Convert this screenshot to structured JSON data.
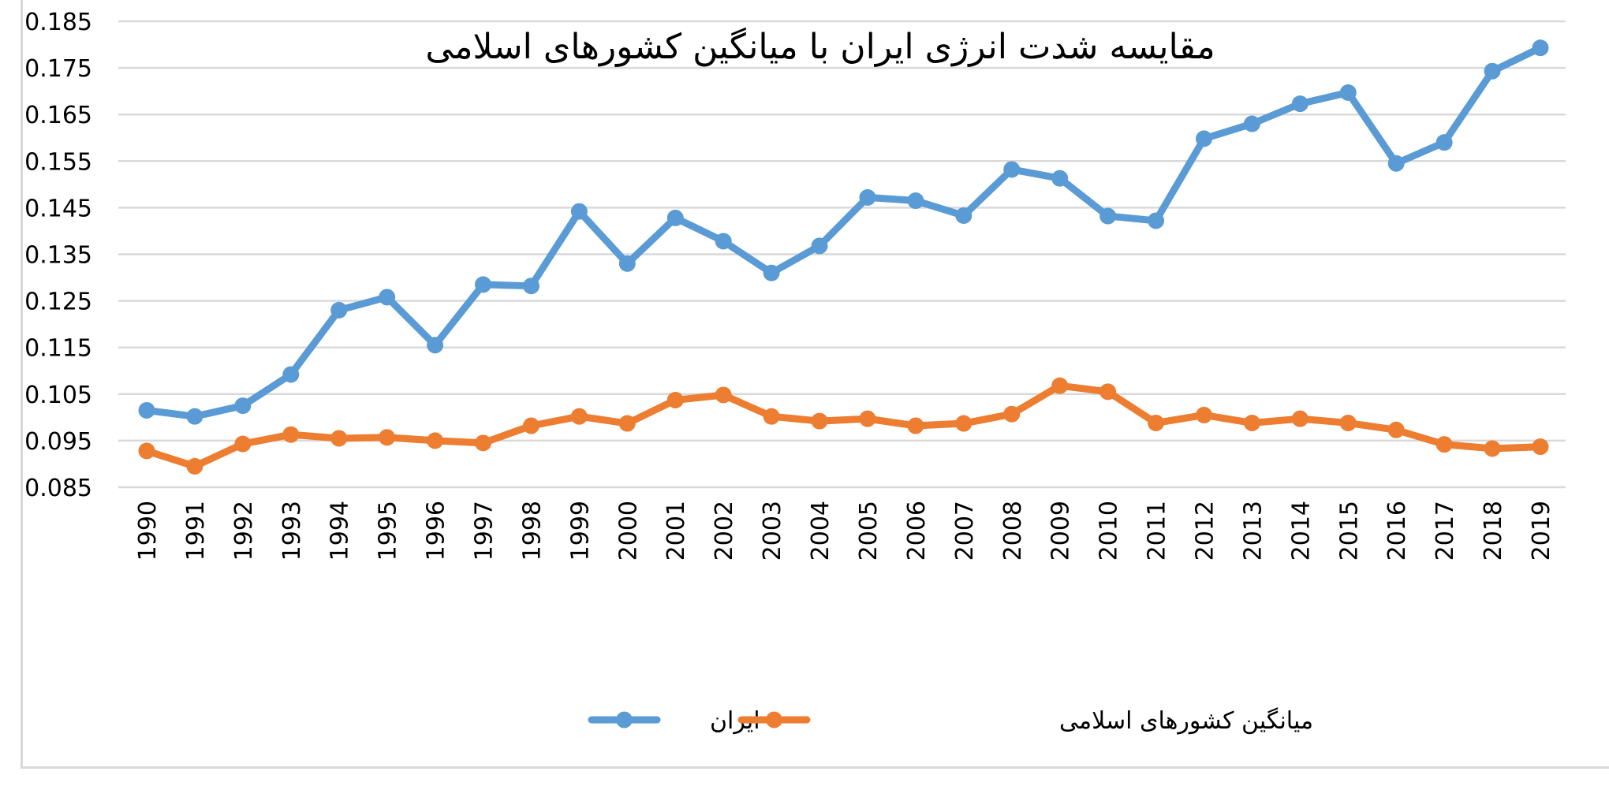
{
  "chart_data": {
    "type": "line",
    "title": "مقایسه شدت انرژی ایران با میانگین کشورهای اسلامی",
    "xlabel": "",
    "ylabel": "",
    "categories": [
      "1990",
      "1991",
      "1992",
      "1993",
      "1994",
      "1995",
      "1996",
      "1997",
      "1998",
      "1999",
      "2000",
      "2001",
      "2002",
      "2003",
      "2004",
      "2005",
      "2006",
      "2007",
      "2008",
      "2009",
      "2010",
      "2011",
      "2012",
      "2013",
      "2014",
      "2015",
      "2016",
      "2017",
      "2018",
      "2019"
    ],
    "ylim": [
      0.085,
      0.185
    ],
    "yticks": [
      "0.185",
      "0.175",
      "0.165",
      "0.155",
      "0.145",
      "0.135",
      "0.125",
      "0.115",
      "0.105",
      "0.095",
      "0.085"
    ],
    "grid": true,
    "legend_position": "bottom",
    "series": [
      {
        "name": "ایران",
        "color": "#5b9bd5",
        "values": [
          0.1015,
          0.1002,
          0.1025,
          0.1092,
          0.123,
          0.1258,
          0.1155,
          0.1285,
          0.1282,
          0.1442,
          0.133,
          0.1428,
          0.1378,
          0.131,
          0.1368,
          0.1472,
          0.1465,
          0.1433,
          0.1532,
          0.1513,
          0.1432,
          0.1422,
          0.1598,
          0.163,
          0.1673,
          0.1697,
          0.1545,
          0.159,
          0.1743,
          0.1793
        ]
      },
      {
        "name": "میانگین کشورهای اسلامی",
        "color": "#ed7d31",
        "values": [
          0.0928,
          0.0895,
          0.0943,
          0.0963,
          0.0955,
          0.0957,
          0.095,
          0.0945,
          0.0982,
          0.1002,
          0.0987,
          0.1037,
          0.1048,
          0.1002,
          0.0992,
          0.0997,
          0.0982,
          0.0987,
          0.1007,
          0.1068,
          0.1055,
          0.0988,
          0.1005,
          0.0988,
          0.0997,
          0.0988,
          0.0973,
          0.0942,
          0.0933,
          0.0937
        ]
      }
    ]
  }
}
